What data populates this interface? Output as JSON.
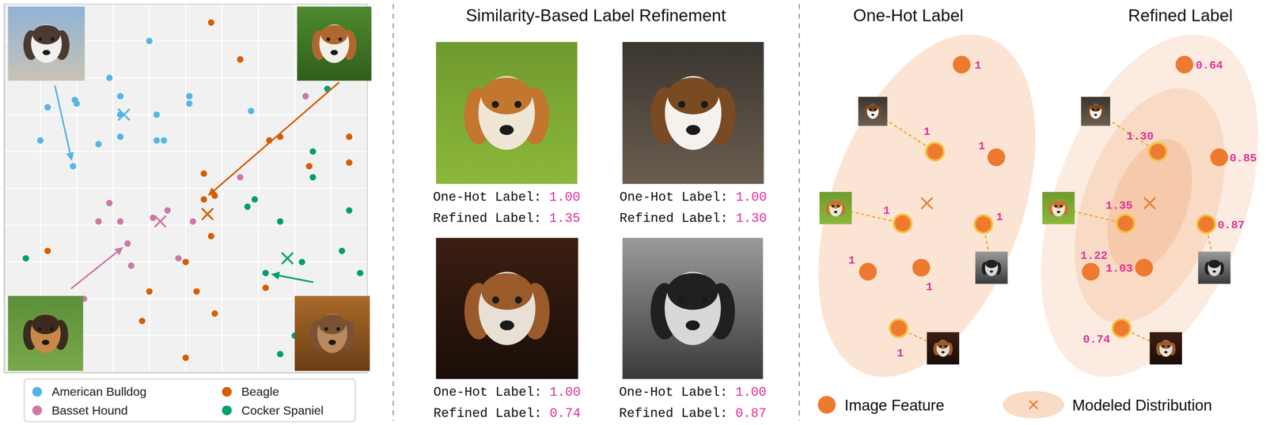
{
  "chart_data": {
    "type": "scatter",
    "xlim": [
      0,
      10
    ],
    "ylim": [
      0,
      10
    ],
    "xticks": [
      0,
      1,
      2,
      3,
      4,
      5,
      6,
      7,
      8,
      9,
      10
    ],
    "yticks": [
      0,
      1,
      2,
      3,
      4,
      5,
      6,
      7,
      8,
      9,
      10
    ],
    "grid": true,
    "tick_labels": false,
    "legend": "bottom",
    "marker": "circle",
    "series": [
      {
        "name": "American Bulldog",
        "color": "#56b4e9",
        "x": [
          4.0,
          2.9,
          3.2,
          1.2,
          1.95,
          3.2,
          5.1,
          5.1,
          4.2,
          6.8,
          1.0,
          2.6,
          3.2,
          4.2,
          4.4,
          2.0,
          1.9
        ],
        "y": [
          9.0,
          8.0,
          7.5,
          7.2,
          7.4,
          7.0,
          7.5,
          7.3,
          7.0,
          7.1,
          6.3,
          6.2,
          6.4,
          6.3,
          6.3,
          7.3,
          5.6
        ],
        "center": [
          3.3,
          7.0
        ]
      },
      {
        "name": "Basset Hound",
        "color": "#cc79a7",
        "x": [
          8.3,
          6.5,
          2.9,
          4.5,
          2.6,
          3.2,
          4.1,
          5.2,
          3.4,
          3.5,
          4.8,
          2.2
        ],
        "y": [
          7.5,
          5.3,
          4.6,
          4.4,
          4.1,
          4.1,
          4.2,
          4.1,
          3.5,
          2.9,
          3.1,
          2.0
        ],
        "center": [
          4.3,
          4.1
        ]
      },
      {
        "name": "Beagle",
        "color": "#d55e00",
        "x": [
          5.7,
          6.5,
          7.6,
          7.3,
          9.5,
          9.5,
          8.4,
          5.5,
          5.5,
          5.8,
          5.7,
          1.2,
          5.0,
          4.0,
          5.3,
          7.2,
          3.8,
          5.8,
          5.0
        ],
        "y": [
          9.5,
          8.5,
          6.4,
          6.3,
          6.4,
          5.7,
          5.6,
          5.4,
          4.7,
          4.8,
          3.7,
          3.3,
          3.0,
          2.2,
          2.2,
          2.3,
          1.4,
          1.6,
          0.4
        ],
        "center": [
          5.6,
          4.3
        ]
      },
      {
        "name": "Cocker Spaniel",
        "color": "#009e73",
        "x": [
          8.9,
          8.5,
          8.5,
          6.9,
          6.7,
          7.6,
          9.5,
          0.6,
          8.2,
          9.3,
          9.8,
          7.2,
          8.0,
          7.6
        ],
        "y": [
          7.7,
          6.0,
          5.3,
          4.7,
          4.5,
          4.1,
          4.4,
          3.1,
          3.0,
          3.3,
          2.7,
          2.7,
          1.0,
          0.5
        ],
        "center": [
          7.8,
          3.1
        ]
      }
    ]
  },
  "similarity_panel": {
    "title": "Similarity-Based Label Refinement",
    "items": [
      {
        "one_hot_text": "One-Hot Label:",
        "one_hot_value": "1.00",
        "refined_text": "Refined Label:",
        "refined_value": "1.35"
      },
      {
        "one_hot_text": "One-Hot Label:",
        "one_hot_value": "1.00",
        "refined_text": "Refined Label:",
        "refined_value": "1.30"
      },
      {
        "one_hot_text": "One-Hot Label:",
        "one_hot_value": "1.00",
        "refined_text": "Refined Label:",
        "refined_value": "0.74"
      },
      {
        "one_hot_text": "One-Hot Label:",
        "one_hot_value": "1.00",
        "refined_text": "Refined Label:",
        "refined_value": "0.87"
      }
    ]
  },
  "label_panels": [
    {
      "title": "One-Hot Label",
      "labels": [
        "1",
        "1",
        "1",
        "1",
        "1",
        "1",
        "1",
        "1"
      ]
    },
    {
      "title": "Refined Label",
      "labels": [
        "0.64",
        "1.30",
        "0.85",
        "1.35",
        "0.87",
        "1.22",
        "1.03",
        "0.74"
      ]
    }
  ],
  "label_legend": [
    "Image Feature",
    "Modeled Distribution"
  ]
}
